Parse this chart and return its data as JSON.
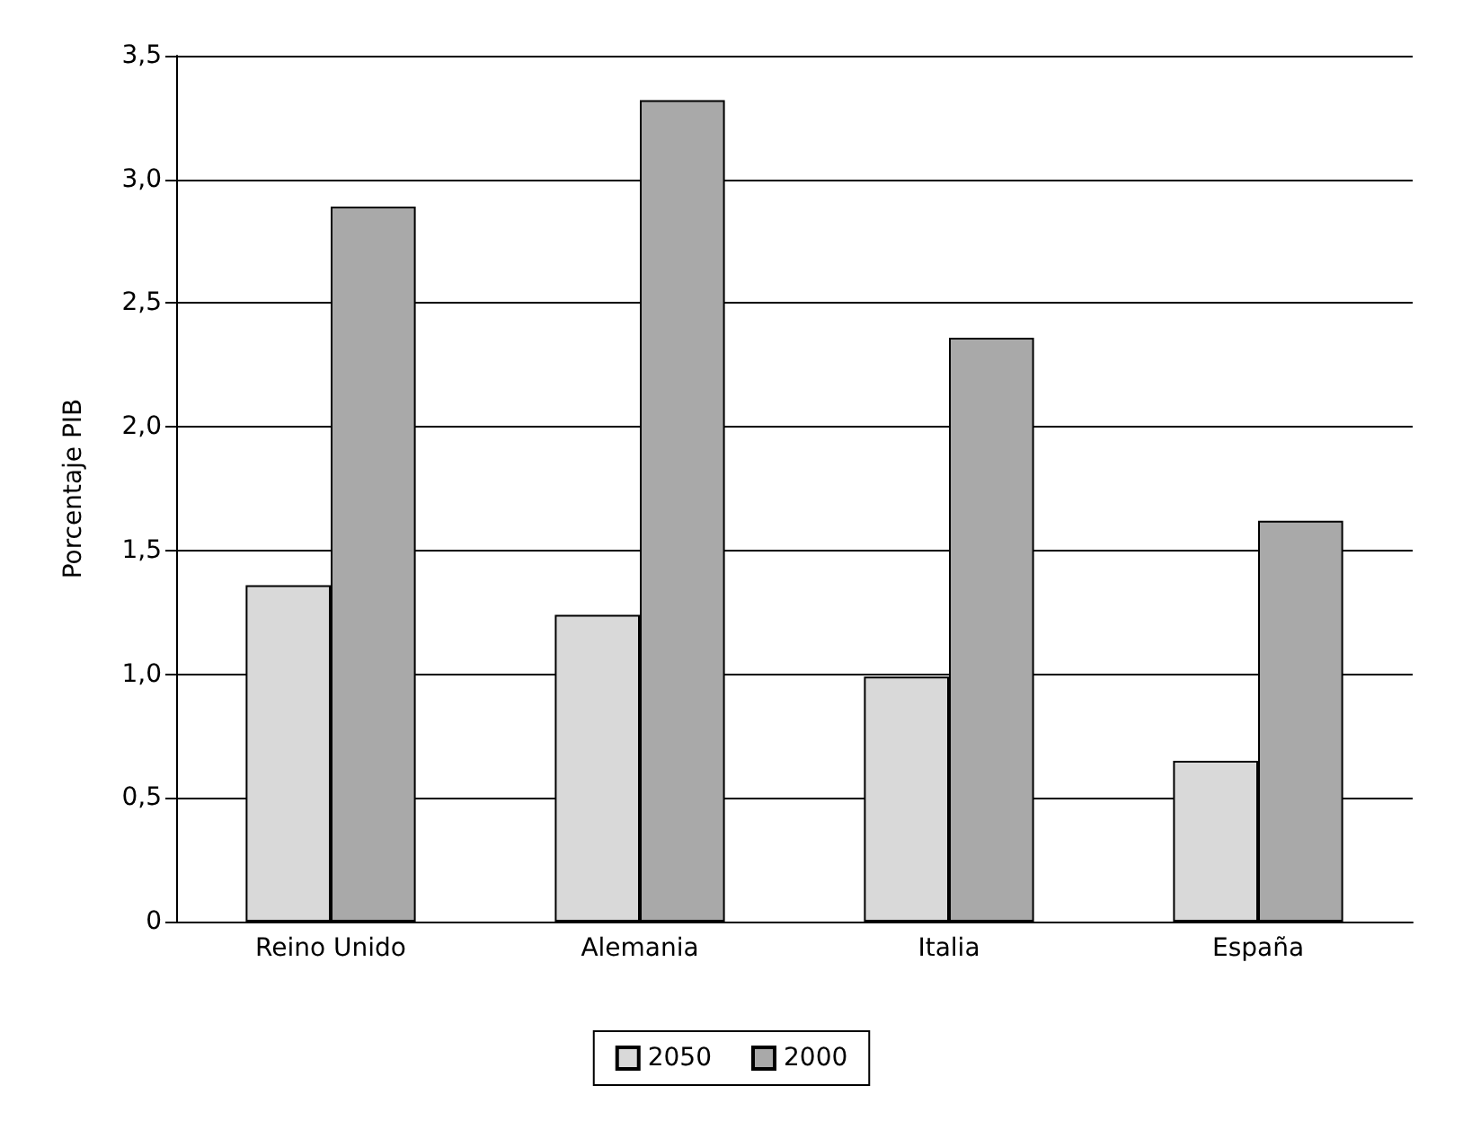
{
  "chart_data": {
    "type": "bar",
    "ylabel": "Porcentaje PIB",
    "categories": [
      "Reino Unido",
      "Alemania",
      "Italia",
      "España"
    ],
    "series": [
      {
        "name": "2050",
        "color": "#d9d9d9",
        "values": [
          1.36,
          1.24,
          0.99,
          0.65
        ]
      },
      {
        "name": "2000",
        "color": "#a9a9a9",
        "values": [
          2.89,
          3.32,
          2.36,
          1.62
        ]
      }
    ],
    "ylim": [
      0,
      3.5
    ],
    "yticks": [
      0,
      {
        "value": 0.5,
        "label": "0,5"
      },
      {
        "value": 1,
        "label": "1,0"
      },
      {
        "value": 1.5,
        "label": "1,5"
      },
      {
        "value": 2,
        "label": "2,0"
      },
      {
        "value": 2.5,
        "label": "2,5"
      },
      {
        "value": 3,
        "label": "3,0"
      },
      {
        "value": 3.5,
        "label": "3,5"
      }
    ],
    "grid": "y",
    "legend": "bottom"
  }
}
